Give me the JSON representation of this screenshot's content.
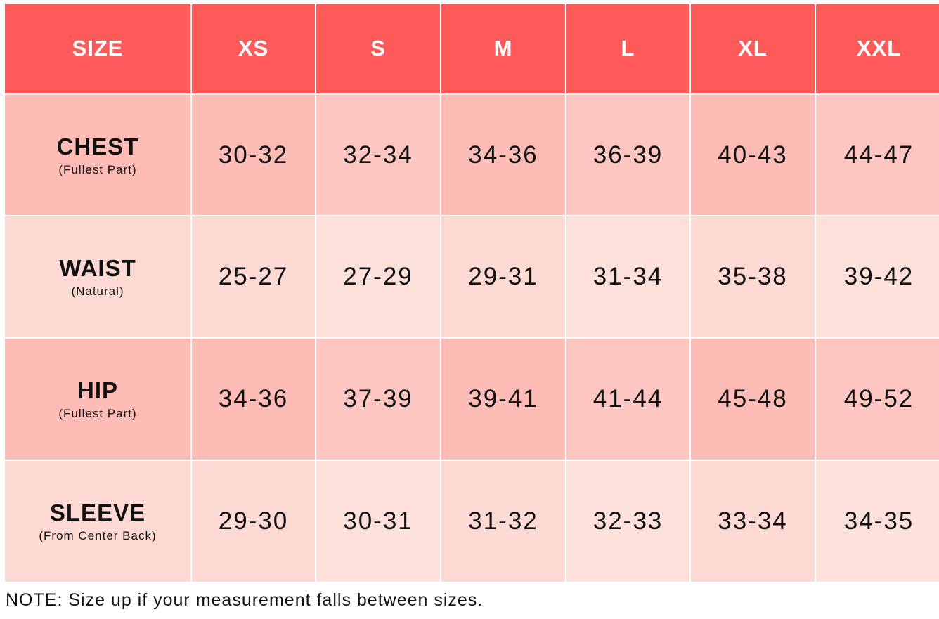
{
  "header": [
    "SIZE",
    "XS",
    "S",
    "M",
    "L",
    "XL",
    "XXL"
  ],
  "rows": [
    {
      "label": "CHEST",
      "sublabel": "(Fullest Part)",
      "values": [
        "30-32",
        "32-34",
        "34-36",
        "36-39",
        "40-43",
        "44-47"
      ]
    },
    {
      "label": "WAIST",
      "sublabel": "(Natural)",
      "values": [
        "25-27",
        "27-29",
        "29-31",
        "31-34",
        "35-38",
        "39-42"
      ]
    },
    {
      "label": "HIP",
      "sublabel": "(Fullest Part)",
      "values": [
        "34-36",
        "37-39",
        "39-41",
        "41-44",
        "45-48",
        "49-52"
      ]
    },
    {
      "label": "SLEEVE",
      "sublabel": "(From Center Back)",
      "values": [
        "29-30",
        "30-31",
        "31-32",
        "32-33",
        "33-34",
        "34-35"
      ]
    }
  ],
  "note": "NOTE: Size up if your measurement falls between sizes."
}
